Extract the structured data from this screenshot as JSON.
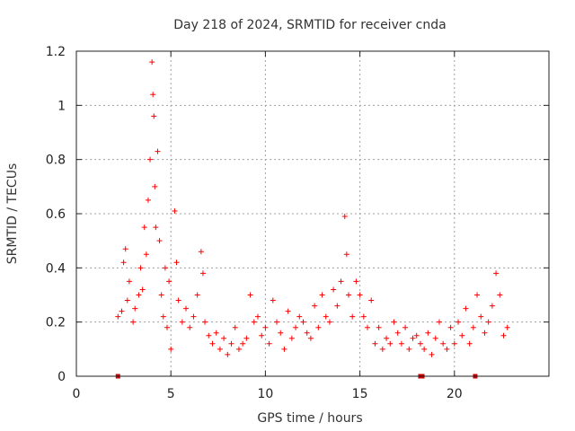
{
  "chart_data": {
    "type": "scatter",
    "title": "Day 218 of 2024, SRMTID for receiver cnda",
    "xlabel": "GPS time / hours",
    "ylabel": "SRMTID / TECUs",
    "xlim": [
      0,
      25
    ],
    "ylim": [
      0,
      1.2
    ],
    "x_ticks": [
      0,
      5,
      10,
      15,
      20
    ],
    "x_tick_labels": [
      "0",
      "5",
      "10",
      "15",
      "20"
    ],
    "y_ticks": [
      0,
      0.2,
      0.4,
      0.6,
      0.8,
      1,
      1.2
    ],
    "y_tick_labels": [
      "0",
      "0.2",
      "0.4",
      "0.6",
      "0.8",
      "1",
      "1.2"
    ],
    "grid": true,
    "marker": "plus",
    "color": "#ff0000",
    "data_points_x_hours": [
      2.2,
      2.4,
      2.5,
      2.6,
      2.7,
      2.8,
      3.0,
      3.1,
      3.3,
      3.4,
      3.5,
      3.6,
      3.7,
      3.8,
      3.9,
      4.0,
      4.05,
      4.1,
      4.15,
      4.2,
      4.3,
      4.4,
      4.5,
      4.6,
      4.7,
      4.8,
      4.9,
      5.0,
      5.2,
      5.3,
      5.4,
      5.6,
      5.8,
      6.0,
      6.2,
      6.4,
      6.6,
      6.7,
      6.8,
      7.0,
      7.2,
      7.4,
      7.6,
      7.8,
      8.0,
      8.2,
      8.4,
      8.6,
      8.8,
      9.0,
      9.2,
      9.4,
      9.6,
      9.8,
      10.0,
      10.2,
      10.4,
      10.6,
      10.8,
      11.0,
      11.2,
      11.4,
      11.6,
      11.8,
      12.0,
      12.2,
      12.4,
      12.6,
      12.8,
      13.0,
      13.2,
      13.4,
      13.6,
      13.8,
      14.0,
      14.2,
      14.3,
      14.4,
      14.6,
      14.8,
      15.0,
      15.2,
      15.4,
      15.6,
      15.8,
      16.0,
      16.2,
      16.4,
      16.6,
      16.8,
      17.0,
      17.2,
      17.4,
      17.6,
      17.8,
      18.0,
      18.2,
      18.4,
      18.6,
      18.8,
      19.0,
      19.2,
      19.4,
      19.6,
      19.8,
      20.0,
      20.2,
      20.4,
      20.6,
      20.8,
      21.0,
      21.2,
      21.4,
      21.6,
      21.8,
      22.0,
      22.2,
      22.4,
      22.6,
      22.8
    ],
    "data_points_y_tecu": [
      0.22,
      0.24,
      0.42,
      0.47,
      0.28,
      0.35,
      0.2,
      0.25,
      0.3,
      0.4,
      0.32,
      0.55,
      0.45,
      0.65,
      0.8,
      1.16,
      1.04,
      0.96,
      0.7,
      0.55,
      0.83,
      0.5,
      0.3,
      0.22,
      0.4,
      0.18,
      0.35,
      0.1,
      0.61,
      0.42,
      0.28,
      0.2,
      0.25,
      0.18,
      0.22,
      0.3,
      0.46,
      0.38,
      0.2,
      0.15,
      0.12,
      0.16,
      0.1,
      0.14,
      0.08,
      0.12,
      0.18,
      0.1,
      0.12,
      0.14,
      0.3,
      0.2,
      0.22,
      0.15,
      0.18,
      0.12,
      0.28,
      0.2,
      0.16,
      0.1,
      0.24,
      0.14,
      0.18,
      0.22,
      0.2,
      0.16,
      0.14,
      0.26,
      0.18,
      0.3,
      0.22,
      0.2,
      0.32,
      0.26,
      0.35,
      0.59,
      0.45,
      0.3,
      0.22,
      0.35,
      0.3,
      0.22,
      0.18,
      0.28,
      0.12,
      0.18,
      0.1,
      0.14,
      0.12,
      0.2,
      0.16,
      0.12,
      0.18,
      0.1,
      0.14,
      0.15,
      0.12,
      0.1,
      0.16,
      0.08,
      0.14,
      0.2,
      0.12,
      0.1,
      0.18,
      0.12,
      0.2,
      0.15,
      0.25,
      0.12,
      0.18,
      0.3,
      0.22,
      0.16,
      0.2,
      0.26,
      0.38,
      0.3,
      0.15,
      0.18
    ],
    "zero_markers_x_hours": [
      2.2,
      18.2,
      18.3,
      21.1
    ]
  }
}
